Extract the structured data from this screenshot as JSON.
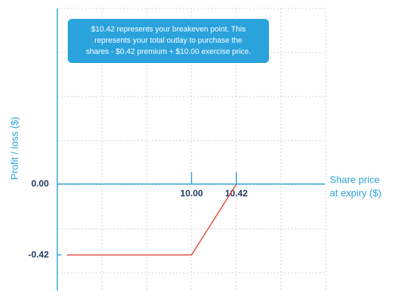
{
  "chart_data": {
    "type": "line",
    "ylabel": "Profit / loss ($)",
    "xlabel": [
      "Share price",
      "at expiry ($)"
    ],
    "annotation": [
      "$10.42 represents your breakeven point. This",
      "represents your total outlay to purchase the",
      "shares - $0.42 premium + $10.00 exercise price."
    ],
    "x": [
      8.83,
      10.0,
      10.42
    ],
    "series": [
      {
        "color": "#e0473c",
        "values": [
          -0.42,
          -0.42,
          0
        ]
      }
    ],
    "xlim": [
      8.74,
      11.25
    ],
    "ylim": [
      -0.63,
      1.04
    ],
    "xticks": [
      {
        "value": 10,
        "label": "10.00"
      },
      {
        "value": 10.42,
        "label": "10.42"
      }
    ],
    "yticks": [
      {
        "value": 0,
        "label": "0.00"
      },
      {
        "value": -0.42,
        "label": "-0.42"
      }
    ],
    "grid": true
  }
}
